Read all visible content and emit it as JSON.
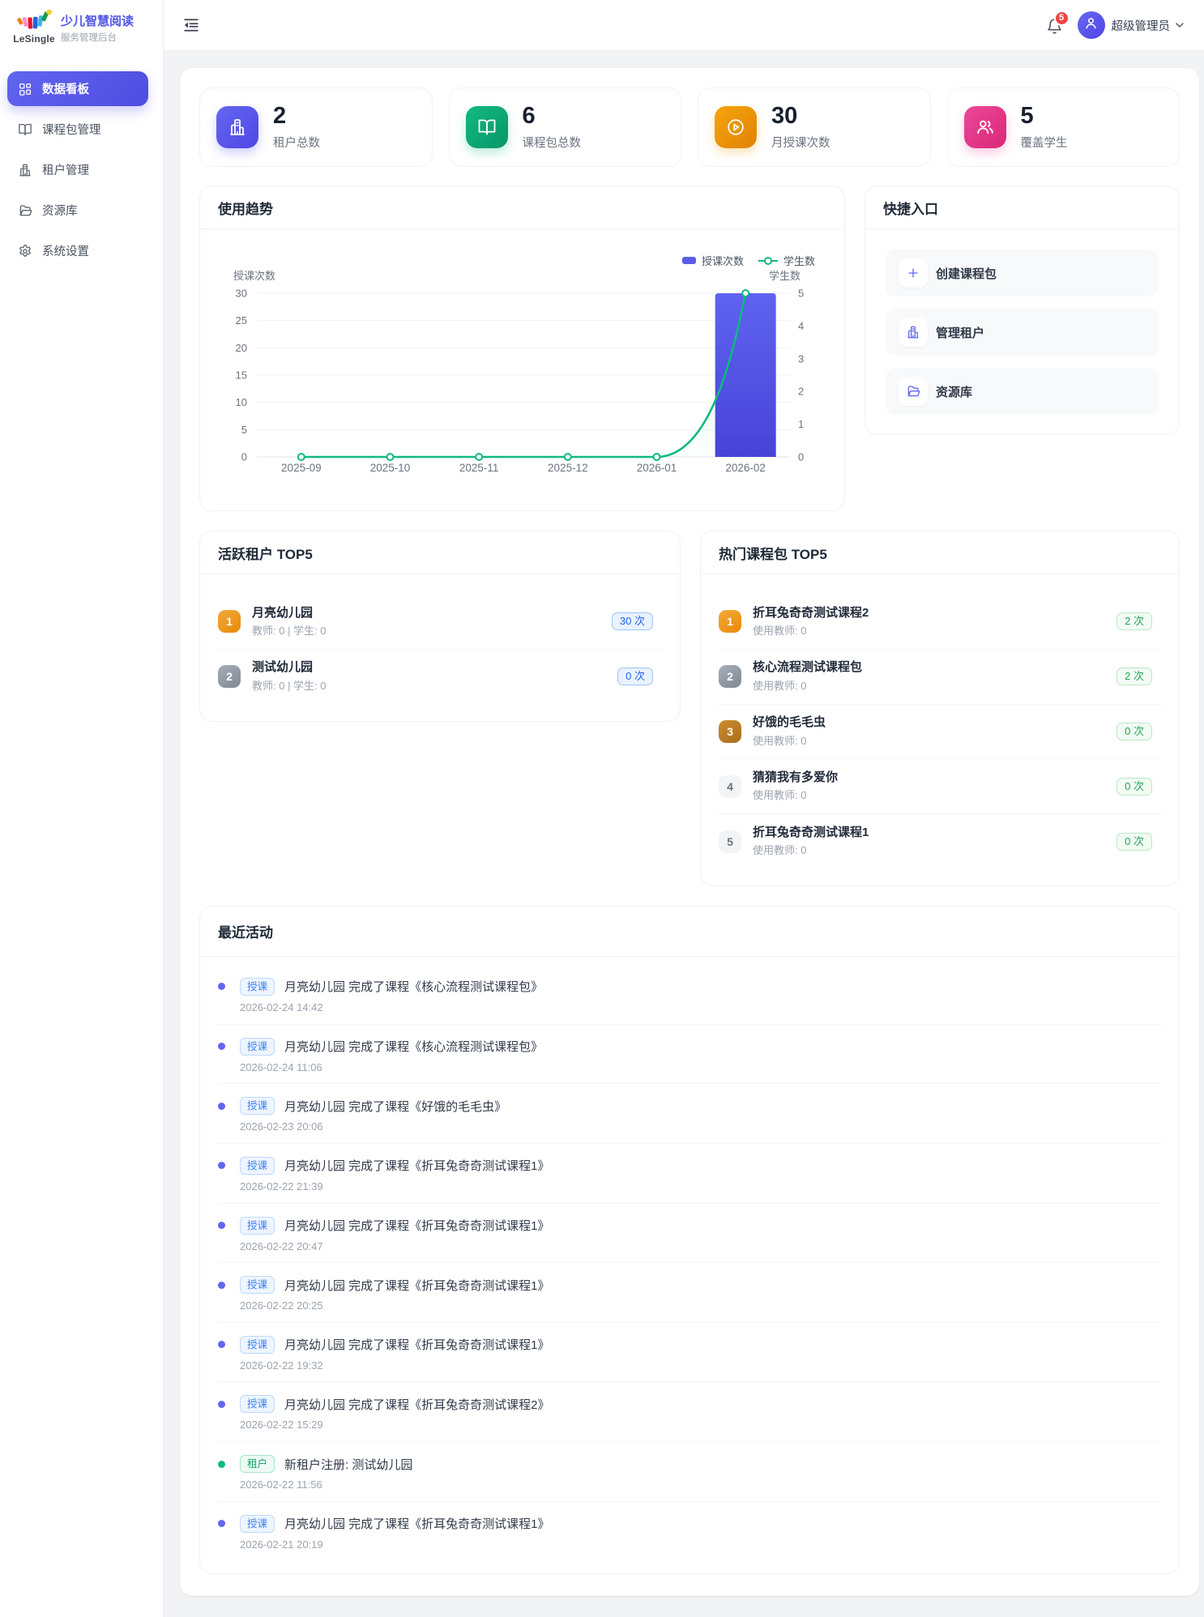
{
  "brand": {
    "logo_text": "LeSingle",
    "title": "少儿智慧阅读",
    "subtitle": "服务管理后台"
  },
  "sidebar": {
    "items": [
      {
        "label": "数据看板",
        "icon": "dashboard-icon",
        "active": true
      },
      {
        "label": "课程包管理",
        "icon": "book-icon",
        "active": false
      },
      {
        "label": "租户管理",
        "icon": "building-icon",
        "active": false
      },
      {
        "label": "资源库",
        "icon": "folder-icon",
        "active": false
      },
      {
        "label": "系统设置",
        "icon": "gear-icon",
        "active": false
      }
    ]
  },
  "header": {
    "notification_count": "5",
    "username": "超级管理员"
  },
  "stats": [
    {
      "value": "2",
      "label": "租户总数",
      "icon": "building-icon",
      "color_from": "#6467f2",
      "color_to": "#4f46e5",
      "shadow": "rgba(99,102,241,.30)"
    },
    {
      "value": "6",
      "label": "课程包总数",
      "icon": "book-icon",
      "color_from": "#12b982",
      "color_to": "#079668",
      "shadow": "rgba(16,185,129,.28)"
    },
    {
      "value": "30",
      "label": "月授课次数",
      "icon": "play-circle-icon",
      "color_from": "#f6a50b",
      "color_to": "#e08206",
      "shadow": "rgba(245,158,11,.28)"
    },
    {
      "value": "5",
      "label": "覆盖学生",
      "icon": "users-icon",
      "color_from": "#ec4899",
      "color_to": "#db2777",
      "shadow": "rgba(236,72,153,.28)"
    }
  ],
  "trend": {
    "title": "使用趋势"
  },
  "chart_data": {
    "type": "bar",
    "title": "使用趋势",
    "categories": [
      "2025-09",
      "2025-10",
      "2025-11",
      "2025-12",
      "2026-01",
      "2026-02"
    ],
    "series": [
      {
        "name": "授课次数",
        "type": "bar",
        "axis": "left",
        "values": [
          0,
          0,
          0,
          0,
          0,
          30
        ],
        "color": "#5b5ce6"
      },
      {
        "name": "学生数",
        "type": "line",
        "axis": "right",
        "values": [
          0,
          0,
          0,
          0,
          0,
          5
        ],
        "color": "#10b981"
      }
    ],
    "left_axis": {
      "name": "授课次数",
      "min": 0,
      "max": 30,
      "ticks": [
        0,
        5,
        10,
        15,
        20,
        25,
        30
      ]
    },
    "right_axis": {
      "name": "学生数",
      "min": 0,
      "max": 5,
      "ticks": [
        0,
        1,
        2,
        3,
        4,
        5
      ]
    },
    "legend": [
      "授课次数",
      "学生数"
    ],
    "legend_position": "top-right",
    "grid": true
  },
  "quick": {
    "title": "快捷入口",
    "items": [
      {
        "label": "创建课程包",
        "icon": "plus-icon"
      },
      {
        "label": "管理租户",
        "icon": "building-icon"
      },
      {
        "label": "资源库",
        "icon": "folder-icon"
      }
    ]
  },
  "tenants": {
    "title": "活跃租户 TOP5",
    "count_style": "blue",
    "items": [
      {
        "rank": "1",
        "name": "月亮幼儿园",
        "meta": "教师: 0 | 学生: 0",
        "count": "30 次"
      },
      {
        "rank": "2",
        "name": "测试幼儿园",
        "meta": "教师: 0 | 学生: 0",
        "count": "0 次"
      }
    ]
  },
  "packages": {
    "title": "热门课程包 TOP5",
    "count_style": "green",
    "items": [
      {
        "rank": "1",
        "name": "折耳兔奇奇测试课程2",
        "meta": "使用教师: 0",
        "count": "2 次"
      },
      {
        "rank": "2",
        "name": "核心流程测试课程包",
        "meta": "使用教师: 0",
        "count": "2 次"
      },
      {
        "rank": "3",
        "name": "好饿的毛毛虫",
        "meta": "使用教师: 0",
        "count": "0 次"
      },
      {
        "rank": "4",
        "name": "猜猜我有多爱你",
        "meta": "使用教师: 0",
        "count": "0 次"
      },
      {
        "rank": "5",
        "name": "折耳兔奇奇测试课程1",
        "meta": "使用教师: 0",
        "count": "0 次"
      }
    ]
  },
  "activity": {
    "title": "最近活动",
    "items": [
      {
        "tag": "授课",
        "type": "teach",
        "text": "月亮幼儿园 完成了课程《核心流程测试课程包》",
        "time": "2026-02-24 14:42"
      },
      {
        "tag": "授课",
        "type": "teach",
        "text": "月亮幼儿园 完成了课程《核心流程测试课程包》",
        "time": "2026-02-24 11:06"
      },
      {
        "tag": "授课",
        "type": "teach",
        "text": "月亮幼儿园 完成了课程《好饿的毛毛虫》",
        "time": "2026-02-23 20:06"
      },
      {
        "tag": "授课",
        "type": "teach",
        "text": "月亮幼儿园 完成了课程《折耳兔奇奇测试课程1》",
        "time": "2026-02-22 21:39"
      },
      {
        "tag": "授课",
        "type": "teach",
        "text": "月亮幼儿园 完成了课程《折耳兔奇奇测试课程1》",
        "time": "2026-02-22 20:47"
      },
      {
        "tag": "授课",
        "type": "teach",
        "text": "月亮幼儿园 完成了课程《折耳兔奇奇测试课程1》",
        "time": "2026-02-22 20:25"
      },
      {
        "tag": "授课",
        "type": "teach",
        "text": "月亮幼儿园 完成了课程《折耳兔奇奇测试课程1》",
        "time": "2026-02-22 19:32"
      },
      {
        "tag": "授课",
        "type": "teach",
        "text": "月亮幼儿园 完成了课程《折耳兔奇奇测试课程2》",
        "time": "2026-02-22 15:29"
      },
      {
        "tag": "租户",
        "type": "tenant",
        "text": "新租户注册: 测试幼儿园",
        "time": "2026-02-22 11:56"
      },
      {
        "tag": "授课",
        "type": "teach",
        "text": "月亮幼儿园 完成了课程《折耳兔奇奇测试课程1》",
        "time": "2026-02-21 20:19"
      }
    ]
  },
  "colors": {
    "primary": "#5b5ce6",
    "green": "#10b981",
    "bar_gradient_top": "#5f63f0",
    "bar_gradient_bottom": "#4843d8",
    "badge_red": "#ef4444"
  }
}
